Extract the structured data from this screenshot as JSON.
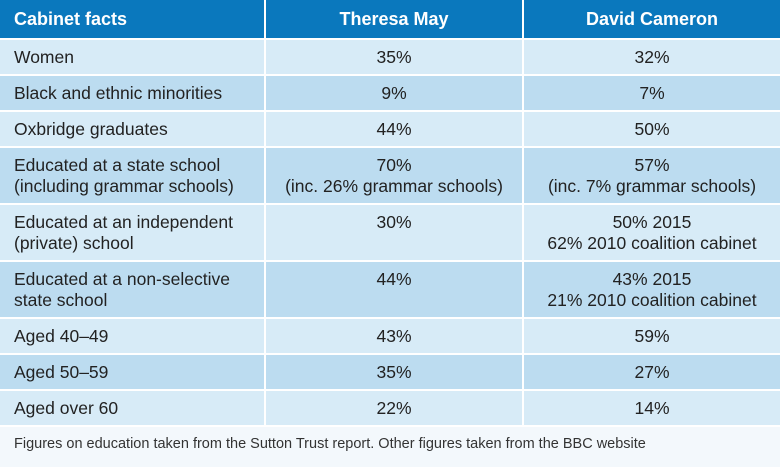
{
  "table": {
    "headers": [
      "Cabinet facts",
      "Theresa May",
      "David Cameron"
    ],
    "rows": [
      {
        "label": [
          "Women"
        ],
        "may": [
          "35%"
        ],
        "cameron": [
          "32%"
        ]
      },
      {
        "label": [
          "Black and ethnic minorities"
        ],
        "may": [
          "9%"
        ],
        "cameron": [
          "7%"
        ]
      },
      {
        "label": [
          "Oxbridge graduates"
        ],
        "may": [
          "44%"
        ],
        "cameron": [
          "50%"
        ]
      },
      {
        "label": [
          "Educated at a state school",
          "(including grammar schools)"
        ],
        "may": [
          "70%",
          "(inc. 26% grammar schools)"
        ],
        "cameron": [
          "57%",
          "(inc. 7% grammar schools)"
        ]
      },
      {
        "label": [
          "Educated at an independent",
          "(private) school"
        ],
        "may": [
          "30%"
        ],
        "cameron": [
          "50% 2015",
          "62% 2010 coalition cabinet"
        ]
      },
      {
        "label": [
          "Educated at a non-selective",
          "state school"
        ],
        "may": [
          "44%"
        ],
        "cameron": [
          "43% 2015",
          "21% 2010 coalition cabinet"
        ]
      },
      {
        "label": [
          "Aged 40–49"
        ],
        "may": [
          "43%"
        ],
        "cameron": [
          "59%"
        ]
      },
      {
        "label": [
          "Aged 50–59"
        ],
        "may": [
          "35%"
        ],
        "cameron": [
          "27%"
        ]
      },
      {
        "label": [
          "Aged over 60"
        ],
        "may": [
          "22%"
        ],
        "cameron": [
          "14%"
        ]
      }
    ]
  },
  "footnote": "Figures on education taken from the Sutton Trust report. Other figures taken from the BBC website"
}
